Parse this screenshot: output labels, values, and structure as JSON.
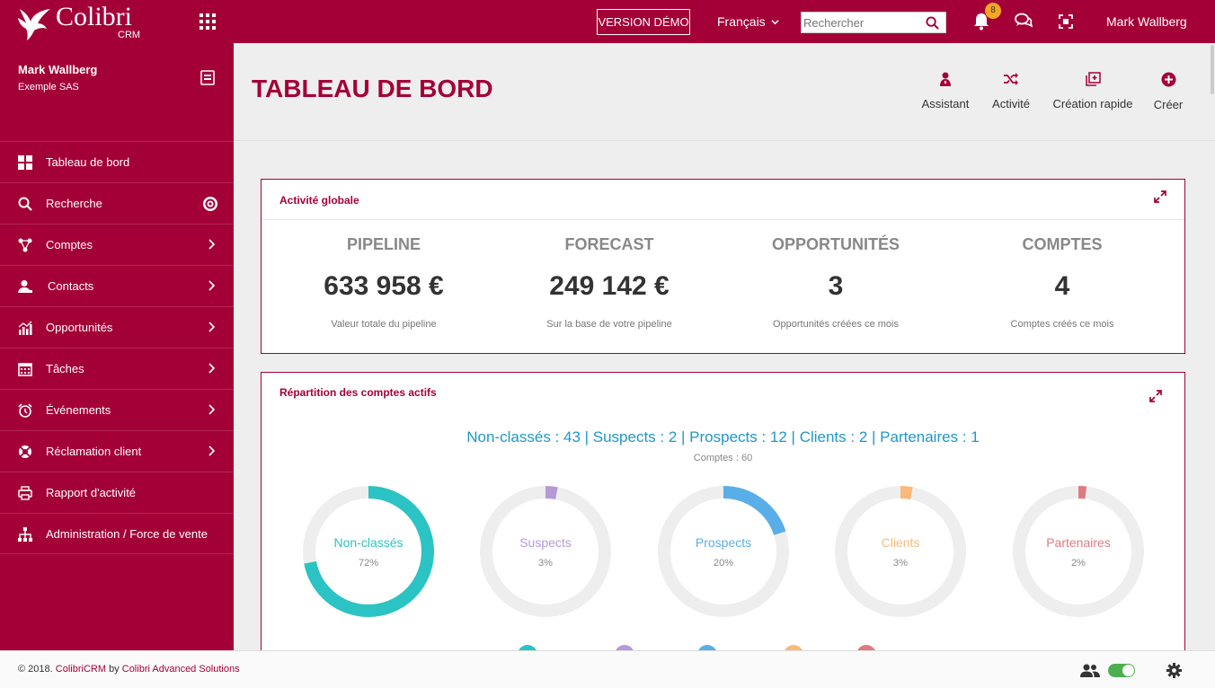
{
  "brand": {
    "name": "Colibri",
    "sub": "CRM"
  },
  "topbar": {
    "demo_label": "VERSION DÉMO",
    "language": "Français",
    "search_placeholder": "Rechercher",
    "notif_count": "8",
    "user_name": "Mark Wallberg"
  },
  "profile": {
    "name": "Mark Wallberg",
    "company": "Exemple SAS"
  },
  "menu": [
    {
      "label": "Tableau de bord",
      "icon": "dashboard-icon"
    },
    {
      "label": "Recherche",
      "icon": "search-icon"
    },
    {
      "label": "Comptes",
      "icon": "accounts-icon"
    },
    {
      "label": "Contacts",
      "icon": "contacts-icon"
    },
    {
      "label": "Opportunités",
      "icon": "chart-icon"
    },
    {
      "label": "Tâches",
      "icon": "calendar-icon"
    },
    {
      "label": "Événements",
      "icon": "alarm-icon"
    },
    {
      "label": "Réclamation client",
      "icon": "lifebuoy-icon"
    },
    {
      "label": "Rapport d'activité",
      "icon": "printer-icon"
    },
    {
      "label": "Administration / Force de vente",
      "icon": "sitemap-icon"
    }
  ],
  "page": {
    "title": "TABLEAU DE BORD"
  },
  "actions": [
    {
      "label": "Assistant",
      "icon": "assistant-icon"
    },
    {
      "label": "Activité",
      "icon": "shuffle-icon"
    },
    {
      "label": "Création rapide",
      "icon": "quick-create-icon"
    },
    {
      "label": "Créer",
      "icon": "plus-circle-icon"
    }
  ],
  "activity": {
    "title": "Activité globale",
    "kpis": [
      {
        "label": "PIPELINE",
        "value": "633 958 €",
        "desc": "Valeur totale du pipeline"
      },
      {
        "label": "FORECAST",
        "value": "249 142 €",
        "desc": "Sur la base de votre pipeline"
      },
      {
        "label": "OPPORTUNITÉS",
        "value": "3",
        "desc": "Opportunités créées ce mois"
      },
      {
        "label": "COMPTES",
        "value": "4",
        "desc": "Comptes créés ce mois"
      }
    ]
  },
  "distribution": {
    "title": "Répartition des comptes actifs",
    "summary": "Non-classés : 43 | Suspects : 2 | Prospects : 12 | Clients : 2 | Partenaires : 1",
    "total": "Comptes : 60",
    "segments": [
      {
        "label": "Non-classés",
        "percent_text": "72%",
        "fraction": 0.72,
        "color": "#2bc3c3"
      },
      {
        "label": "Suspects",
        "percent_text": "3%",
        "fraction": 0.03,
        "color": "#b59ad8"
      },
      {
        "label": "Prospects",
        "percent_text": "20%",
        "fraction": 0.2,
        "color": "#5aaee8"
      },
      {
        "label": "Clients",
        "percent_text": "3%",
        "fraction": 0.03,
        "color": "#f8b97b"
      },
      {
        "label": "Partenaires",
        "percent_text": "2%",
        "fraction": 0.02,
        "color": "#df7b80"
      }
    ]
  },
  "footer": {
    "copyright": "© 2018.",
    "product": "ColibriCRM",
    "by": "by",
    "company": "Colibri Advanced Solutions"
  },
  "colors": {
    "brand": "#a40038",
    "accent_blue": "#1f97c9"
  }
}
